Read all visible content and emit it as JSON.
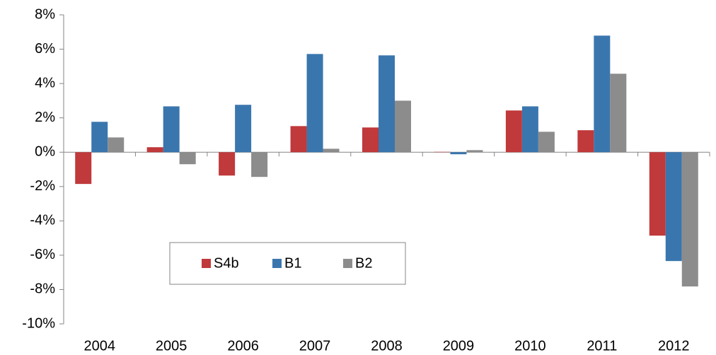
{
  "chart_data": {
    "type": "bar",
    "categories": [
      "2004",
      "2005",
      "2006",
      "2007",
      "2008",
      "2009",
      "2010",
      "2011",
      "2012"
    ],
    "series": [
      {
        "name": "S4b",
        "color": "#c0393b",
        "values": [
          -1.85,
          0.29,
          -1.36,
          1.52,
          1.44,
          0.02,
          2.43,
          1.28,
          -4.86
        ]
      },
      {
        "name": "B1",
        "color": "#3a76ae",
        "values": [
          1.77,
          2.67,
          2.76,
          5.72,
          5.64,
          -0.12,
          2.67,
          6.79,
          -6.34
        ]
      },
      {
        "name": "B2",
        "color": "#8c8c8c",
        "values": [
          0.86,
          -0.7,
          -1.44,
          0.2,
          3.0,
          0.12,
          1.19,
          4.57,
          -7.82
        ]
      }
    ],
    "ylim": [
      -10,
      8
    ],
    "yticks": [
      {
        "value": -10,
        "label": "-10%"
      },
      {
        "value": -8,
        "label": "-8%"
      },
      {
        "value": -6,
        "label": "-6%"
      },
      {
        "value": -4,
        "label": "-4%"
      },
      {
        "value": -2,
        "label": "-2%"
      },
      {
        "value": 0,
        "label": "0%"
      },
      {
        "value": 2,
        "label": "2%"
      },
      {
        "value": 4,
        "label": "4%"
      },
      {
        "value": 6,
        "label": "6%"
      },
      {
        "value": 8,
        "label": "8%"
      }
    ],
    "grid": false,
    "legend": "lower left"
  }
}
